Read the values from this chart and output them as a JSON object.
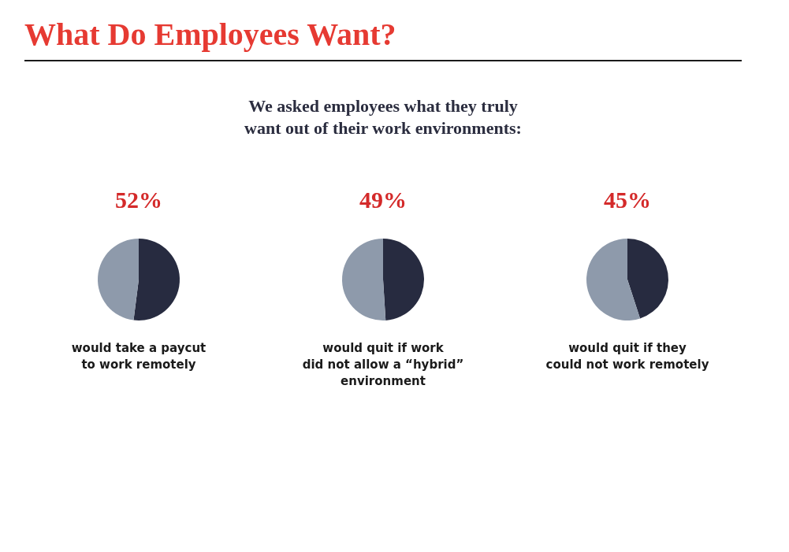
{
  "chart_data": [
    {
      "type": "other",
      "title": "What Do Employees Want?",
      "subtitle": "We asked employees what they truly\nwant out of their work environments:"
    },
    {
      "type": "pie",
      "categories": [
        null,
        null
      ],
      "values": [
        52,
        48
      ],
      "colors": [
        "#272b40",
        "#8e9aab"
      ],
      "value_labels": [
        "52%",
        null
      ],
      "annotations": [
        "would take a paycut\nto work remotely"
      ]
    },
    {
      "type": "pie",
      "categories": [
        null,
        null
      ],
      "values": [
        49,
        51
      ],
      "colors": [
        "#272b40",
        "#8e9aab"
      ],
      "value_labels": [
        "49%",
        null
      ],
      "annotations": [
        "would quit if work\ndid not allow a “hybrid”\nenvironment"
      ]
    },
    {
      "type": "pie",
      "categories": [
        null,
        null
      ],
      "values": [
        45,
        55
      ],
      "colors": [
        "#272b40",
        "#8e9aab"
      ],
      "value_labels": [
        "45%",
        null
      ],
      "annotations": [
        "would quit if they\ncould not work remotely"
      ]
    }
  ]
}
